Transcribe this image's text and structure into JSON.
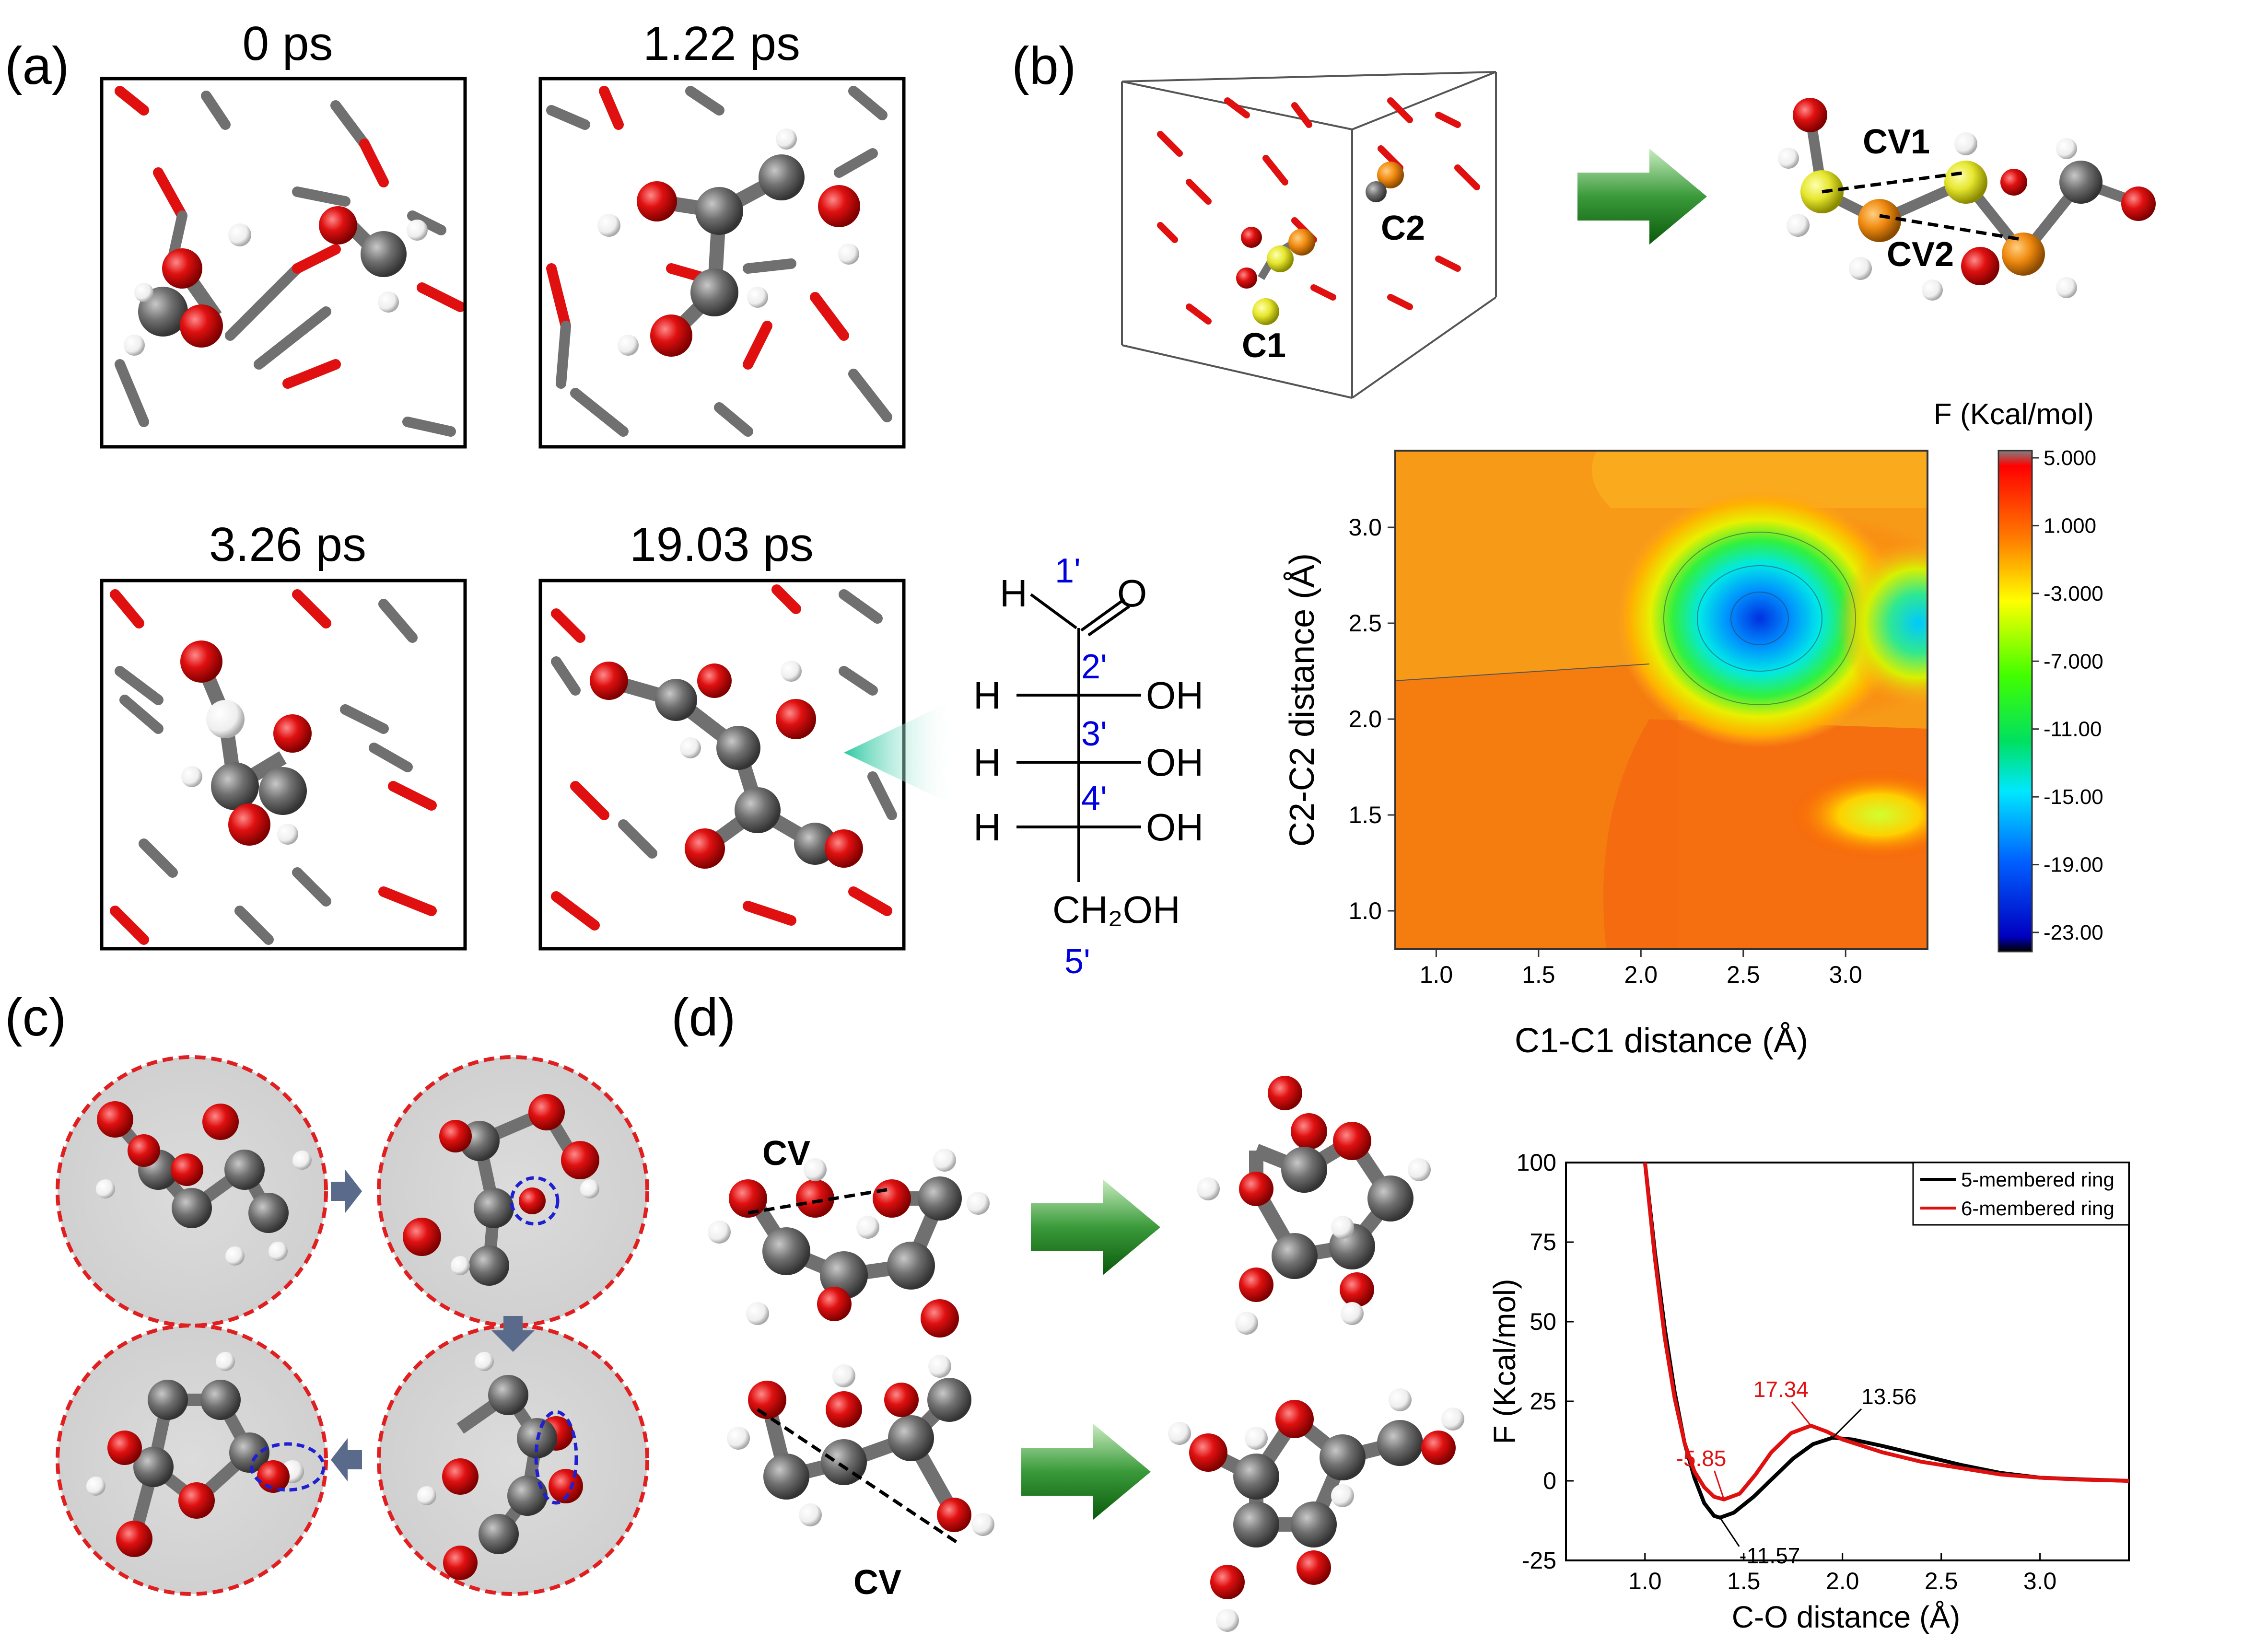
{
  "panels": {
    "a": {
      "label": "(a)",
      "snapshots": [
        {
          "time": "0 ps"
        },
        {
          "time": "1.22 ps"
        },
        {
          "time": "3.26 ps"
        },
        {
          "time": "19.03 ps"
        }
      ],
      "fischer": {
        "top_h": "H",
        "top_o": "O",
        "rows": [
          {
            "num": "1'"
          },
          {
            "num": "2'",
            "left": "H",
            "right": "OH"
          },
          {
            "num": "3'",
            "left": "H",
            "right": "OH"
          },
          {
            "num": "4'",
            "left": "H",
            "right": "OH"
          }
        ],
        "bottom": "CH₂OH",
        "bottom_num": "5'"
      }
    },
    "b": {
      "label": "(b)",
      "box_labels": {
        "c1": "C1",
        "c2": "C2"
      },
      "cv_labels": {
        "cv1": "CV1",
        "cv2": "CV2"
      }
    },
    "c": {
      "label": "(c)"
    },
    "d": {
      "label": "(d)",
      "cv_top": "CV",
      "cv_bottom": "CV"
    }
  },
  "colors": {
    "oxygen": "#e01010",
    "carbon": "#707070",
    "hydrogen": "#f4f4f4",
    "sulfur_like": "#e6e62e",
    "orange_atom": "#f08a10",
    "arrow_green": "#1f8a1f",
    "ring_red": "#e02020",
    "ring_blue": "#2020d0",
    "series_5": "#000000",
    "series_6": "#e01010"
  },
  "chart_data": [
    {
      "type": "heatmap",
      "xlabel": "C1-C1 distance (Å)",
      "ylabel": "C2-C2 distance (Å)",
      "xlim": [
        0.8,
        3.4
      ],
      "ylim": [
        0.8,
        3.4
      ],
      "xticks": [
        "1.0",
        "1.5",
        "2.0",
        "2.5",
        "3.0"
      ],
      "yticks": [
        "1.0",
        "1.5",
        "2.0",
        "2.5",
        "3.0"
      ],
      "colorbar_title": "F (Kcal/mol)",
      "colorbar_ticks": [
        "5.000",
        "1.000",
        "-3.000",
        "-7.000",
        "-11.00",
        "-15.00",
        "-19.00",
        "-23.00"
      ],
      "minima": [
        {
          "x": 2.6,
          "y": 2.55,
          "depth": -23
        },
        {
          "x": 3.4,
          "y": 2.5,
          "depth": -17
        },
        {
          "x": 3.4,
          "y": 1.55,
          "depth": -4
        }
      ]
    },
    {
      "type": "line",
      "xlabel": "C-O distance (Å)",
      "ylabel": "F (Kcal/mol)",
      "xlim": [
        0.6,
        3.45
      ],
      "ylim": [
        -25,
        100
      ],
      "xticks": [
        "1.0",
        "1.5",
        "2.0",
        "2.5",
        "3.0"
      ],
      "yticks": [
        "-25",
        "0",
        "25",
        "50",
        "75",
        "100"
      ],
      "legend_position": "top-right",
      "series": [
        {
          "name": "5-membered ring",
          "color": "#000000",
          "points": [
            [
              1.0,
              100
            ],
            [
              1.05,
              72
            ],
            [
              1.1,
              48
            ],
            [
              1.15,
              28
            ],
            [
              1.2,
              12
            ],
            [
              1.25,
              1
            ],
            [
              1.3,
              -7
            ],
            [
              1.35,
              -11
            ],
            [
              1.38,
              -11.57
            ],
            [
              1.45,
              -10
            ],
            [
              1.55,
              -5
            ],
            [
              1.65,
              1
            ],
            [
              1.75,
              7
            ],
            [
              1.85,
              11.5
            ],
            [
              1.95,
              13.56
            ],
            [
              2.05,
              13
            ],
            [
              2.2,
              11
            ],
            [
              2.4,
              8
            ],
            [
              2.6,
              5
            ],
            [
              2.8,
              2.5
            ],
            [
              3.0,
              1
            ],
            [
              3.2,
              0.5
            ],
            [
              3.45,
              0
            ]
          ]
        },
        {
          "name": "6-membered ring",
          "color": "#e01010",
          "points": [
            [
              1.0,
              100
            ],
            [
              1.05,
              70
            ],
            [
              1.1,
              45
            ],
            [
              1.15,
              26
            ],
            [
              1.2,
              12
            ],
            [
              1.25,
              3
            ],
            [
              1.3,
              -2
            ],
            [
              1.35,
              -5
            ],
            [
              1.4,
              -5.85
            ],
            [
              1.48,
              -4
            ],
            [
              1.56,
              2
            ],
            [
              1.64,
              9
            ],
            [
              1.74,
              15
            ],
            [
              1.84,
              17.34
            ],
            [
              1.92,
              15.5
            ],
            [
              2.0,
              13
            ],
            [
              2.2,
              9
            ],
            [
              2.4,
              6
            ],
            [
              2.6,
              4
            ],
            [
              2.8,
              2
            ],
            [
              3.0,
              1
            ],
            [
              3.2,
              0.4
            ],
            [
              3.45,
              0
            ]
          ]
        }
      ],
      "annotations": [
        {
          "text": "17.34",
          "color": "#e01010",
          "x": 1.84,
          "y": 17.34
        },
        {
          "text": "13.56",
          "color": "#000000",
          "x": 1.95,
          "y": 13.56
        },
        {
          "text": "-5.85",
          "color": "#e01010",
          "x": 1.4,
          "y": -5.85
        },
        {
          "text": "-11.57",
          "color": "#000000",
          "x": 1.38,
          "y": -11.57
        }
      ]
    }
  ]
}
